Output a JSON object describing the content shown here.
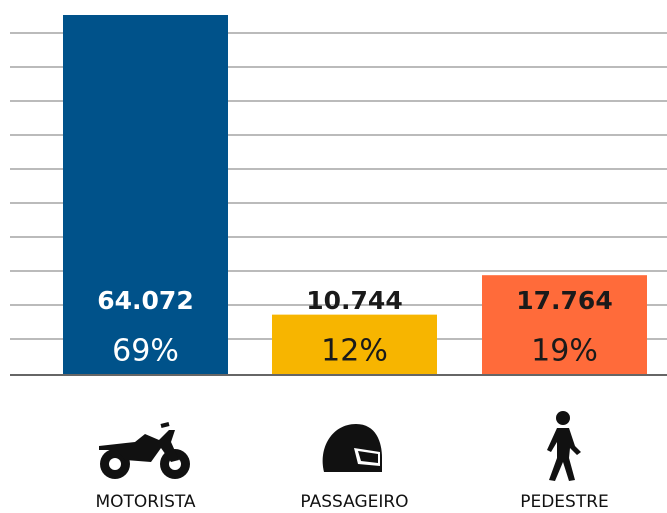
{
  "chart_data": {
    "type": "bar",
    "categories": [
      "MOTORISTA",
      "PASSAGEIRO",
      "PEDESTRE"
    ],
    "values": [
      64072,
      10744,
      17764
    ],
    "value_labels": [
      "64.072",
      "10.744",
      "17.764"
    ],
    "share_values": [
      69,
      12,
      19
    ],
    "share_labels": [
      "69%",
      "12%",
      "19%"
    ],
    "colors": [
      "#00528a",
      "#f7b500",
      "#ff6b3a"
    ],
    "label_colors": [
      "#ffffff",
      "#1a1a1a",
      "#1a1a1a"
    ],
    "ylim": [
      0,
      64072
    ],
    "grid": true
  }
}
